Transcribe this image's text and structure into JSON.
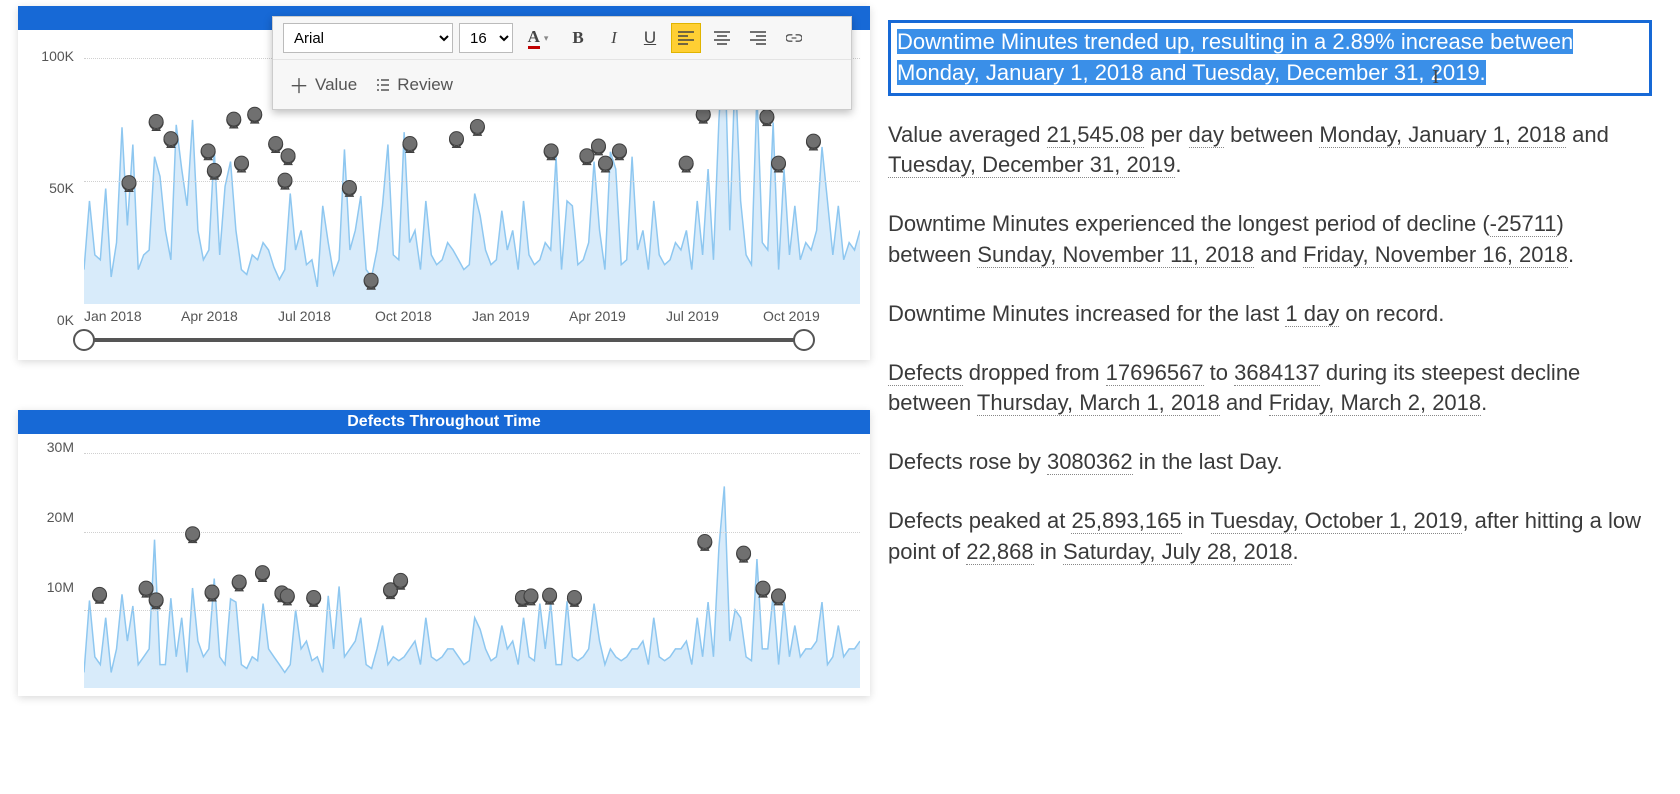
{
  "toolbar": {
    "font_family": "Arial",
    "font_size": "16",
    "font_color_underline": "#c00000",
    "bold_label": "B",
    "italic_label": "I",
    "underline_label": "U",
    "align_active": "left",
    "value_label": "Value",
    "review_label": "Review"
  },
  "chart1": {
    "type": "line-with-markers",
    "line_color": "#8ec7f0",
    "marker_color": "#707070",
    "marker_stroke": "#404040",
    "background_color": "#ffffff",
    "grid_color": "#d0d0d0",
    "y_ticks": [
      "0K",
      "50K",
      "100K"
    ],
    "y_values": [
      0,
      50000,
      100000
    ],
    "ylim": [
      0,
      110000
    ],
    "x_ticks": [
      "Jan 2018",
      "Apr 2018",
      "Jul 2018",
      "Oct 2018",
      "Jan 2019",
      "Apr 2019",
      "Jul 2019",
      "Oct 2019"
    ],
    "slider_start": 0,
    "slider_end": 100,
    "series": [
      14000,
      42000,
      20000,
      18000,
      47000,
      11000,
      25000,
      72000,
      32000,
      65000,
      14000,
      20000,
      22000,
      60000,
      52000,
      30000,
      18000,
      73000,
      55000,
      40000,
      75000,
      30000,
      18000,
      22000,
      63000,
      20000,
      48000,
      58000,
      30000,
      14000,
      12000,
      20000,
      18000,
      25000,
      22000,
      15000,
      10000,
      14000,
      45000,
      22000,
      30000,
      16000,
      18000,
      7000,
      40000,
      25000,
      12000,
      18000,
      63000,
      22000,
      30000,
      44000,
      14000,
      11000,
      22000,
      40000,
      65000,
      20000,
      18000,
      70000,
      25000,
      30000,
      14000,
      42000,
      20000,
      16000,
      18000,
      25000,
      22000,
      18000,
      14000,
      16000,
      45000,
      36000,
      22000,
      16000,
      18000,
      38000,
      22000,
      30000,
      14000,
      42000,
      20000,
      16000,
      18000,
      25000,
      22000,
      60000,
      14000,
      42000,
      40000,
      16000,
      18000,
      25000,
      58000,
      30000,
      14000,
      62000,
      55000,
      16000,
      18000,
      60000,
      22000,
      30000,
      14000,
      42000,
      20000,
      16000,
      18000,
      25000,
      22000,
      30000,
      14000,
      42000,
      20000,
      55000,
      18000,
      75000,
      110000,
      30000,
      96000,
      42000,
      20000,
      16000,
      86000,
      25000,
      22000,
      74000,
      14000,
      55000,
      20000,
      40000,
      18000,
      25000,
      22000,
      30000,
      64000,
      42000,
      20000,
      40000,
      18000,
      25000,
      22000,
      30000
    ],
    "markers": [
      {
        "x": 0.058,
        "y": 47000
      },
      {
        "x": 0.093,
        "y": 72000
      },
      {
        "x": 0.112,
        "y": 65000
      },
      {
        "x": 0.16,
        "y": 60000
      },
      {
        "x": 0.168,
        "y": 52000
      },
      {
        "x": 0.193,
        "y": 73000
      },
      {
        "x": 0.203,
        "y": 55000
      },
      {
        "x": 0.22,
        "y": 75000
      },
      {
        "x": 0.247,
        "y": 63000
      },
      {
        "x": 0.259,
        "y": 48000
      },
      {
        "x": 0.263,
        "y": 58000
      },
      {
        "x": 0.342,
        "y": 45000
      },
      {
        "x": 0.37,
        "y": 7000
      },
      {
        "x": 0.42,
        "y": 63000
      },
      {
        "x": 0.48,
        "y": 65000
      },
      {
        "x": 0.507,
        "y": 70000
      },
      {
        "x": 0.602,
        "y": 60000
      },
      {
        "x": 0.648,
        "y": 58000
      },
      {
        "x": 0.663,
        "y": 62000
      },
      {
        "x": 0.672,
        "y": 55000
      },
      {
        "x": 0.69,
        "y": 60000
      },
      {
        "x": 0.776,
        "y": 55000
      },
      {
        "x": 0.798,
        "y": 75000
      },
      {
        "x": 0.822,
        "y": 96000
      },
      {
        "x": 0.858,
        "y": 86000
      },
      {
        "x": 0.88,
        "y": 74000
      },
      {
        "x": 0.895,
        "y": 55000
      },
      {
        "x": 0.94,
        "y": 64000
      }
    ]
  },
  "chart2": {
    "title": "Defects Throughout Time",
    "type": "line-with-markers",
    "line_color": "#8ec7f0",
    "marker_color": "#707070",
    "marker_stroke": "#404040",
    "background_color": "#ffffff",
    "grid_color": "#d0d0d0",
    "y_ticks": [
      "10M",
      "20M",
      "30M"
    ],
    "y_values": [
      10000000,
      20000000,
      30000000
    ],
    "ylim": [
      0,
      32000000
    ],
    "series": [
      2000000,
      11200000,
      4000000,
      3000000,
      9000000,
      2000000,
      5000000,
      12000000,
      6000000,
      10500000,
      3000000,
      4000000,
      5000000,
      19000000,
      3000000,
      3000000,
      11500000,
      4000000,
      9000000,
      2000000,
      12800000,
      6000000,
      4000000,
      5000000,
      14000000,
      4000000,
      3000000,
      11400000,
      11000000,
      3000000,
      2500000,
      4000000,
      3500000,
      10800000,
      5000000,
      4000000,
      3000000,
      2000000,
      3000000,
      10000000,
      5000000,
      6000000,
      3500000,
      4000000,
      2000000,
      11800000,
      5000000,
      13000000,
      4000000,
      5000000,
      6000000,
      9000000,
      3000000,
      2500000,
      5000000,
      8000000,
      3000000,
      4000000,
      3500000,
      4000000,
      5000000,
      6000000,
      3000000,
      9000000,
      4000000,
      3500000,
      4000000,
      5000000,
      5000000,
      4000000,
      3000000,
      3500000,
      9000000,
      7500000,
      5000000,
      3500000,
      4000000,
      8000000,
      5000000,
      6000000,
      3000000,
      9000000,
      4000000,
      3500000,
      10800000,
      5000000,
      11000000,
      3000000,
      3000000,
      11100000,
      4000000,
      3500000,
      4000000,
      5000000,
      10800000,
      6000000,
      3000000,
      5000000,
      4000000,
      3500000,
      4000000,
      5000000,
      5000000,
      6000000,
      3000000,
      9000000,
      4000000,
      3500000,
      4000000,
      5000000,
      5000000,
      6000000,
      3000000,
      9000000,
      4000000,
      11000000,
      4000000,
      18000000,
      25800000,
      6000000,
      10000000,
      9000000,
      4000000,
      3500000,
      16500000,
      5000000,
      5000000,
      12000000,
      3000000,
      11000000,
      4000000,
      8000000,
      4000000,
      5000000,
      5000000,
      6000000,
      11000000,
      3000000,
      4000000,
      8000000,
      4000000,
      5000000,
      5000000,
      6000000
    ],
    "markers": [
      {
        "x": 0.02,
        "y": 11200000
      },
      {
        "x": 0.08,
        "y": 12000000
      },
      {
        "x": 0.093,
        "y": 10500000
      },
      {
        "x": 0.14,
        "y": 19000000
      },
      {
        "x": 0.165,
        "y": 11500000
      },
      {
        "x": 0.2,
        "y": 12800000
      },
      {
        "x": 0.23,
        "y": 14000000
      },
      {
        "x": 0.255,
        "y": 11400000
      },
      {
        "x": 0.262,
        "y": 11000000
      },
      {
        "x": 0.296,
        "y": 10800000
      },
      {
        "x": 0.395,
        "y": 11800000
      },
      {
        "x": 0.408,
        "y": 13000000
      },
      {
        "x": 0.565,
        "y": 10800000
      },
      {
        "x": 0.576,
        "y": 11000000
      },
      {
        "x": 0.6,
        "y": 11100000
      },
      {
        "x": 0.632,
        "y": 10800000
      },
      {
        "x": 0.8,
        "y": 18000000
      },
      {
        "x": 0.85,
        "y": 16500000
      },
      {
        "x": 0.875,
        "y": 12000000
      },
      {
        "x": 0.895,
        "y": 11000000
      }
    ]
  },
  "insights": {
    "highlight": "Downtime Minutes trended up, resulting in a 2.89% increase between Monday, January 1, 2018 and Tuesday, December 31, 2019.",
    "p1_pre": "Value averaged ",
    "p1_v1": "21,545.08",
    "p1_mid1": " per ",
    "p1_v2": "day",
    "p1_mid2": " between ",
    "p1_v3": "Monday, January 1, 2018",
    "p1_mid3": " and ",
    "p1_v4": "Tuesday, December 31, 2019",
    "p1_post": ".",
    "p2_pre": "Downtime Minutes experienced the longest period of decline (",
    "p2_v1": "-25711",
    "p2_mid1": ") between ",
    "p2_v2": "Sunday, November 11, 2018",
    "p2_mid2": " and ",
    "p2_v3": "Friday, November 16, 2018",
    "p2_post": ".",
    "p3_pre": "Downtime Minutes increased for the last ",
    "p3_v1": "1 day",
    "p3_post": " on record.",
    "p4_v0": "Defects",
    "p4_pre": " dropped from ",
    "p4_v1": "17696567",
    "p4_mid1": " to ",
    "p4_v2": "3684137",
    "p4_mid2": " during its steepest decline between ",
    "p4_v3": "Thursday, March 1, 2018",
    "p4_mid3": " and ",
    "p4_v4": "Friday, March 2, 2018",
    "p4_post": ".",
    "p5_pre": "Defects rose by ",
    "p5_v1": "3080362",
    "p5_post": " in the last Day.",
    "p6_pre": "Defects peaked at ",
    "p6_v1": "25,893,165",
    "p6_mid1": " in ",
    "p6_v2": "Tuesday, October 1, 2019",
    "p6_mid2": ", after hitting a low point of ",
    "p6_v3": "22,868",
    "p6_mid3": " in ",
    "p6_v4": "Saturday, July 28, 2018",
    "p6_post": "."
  }
}
